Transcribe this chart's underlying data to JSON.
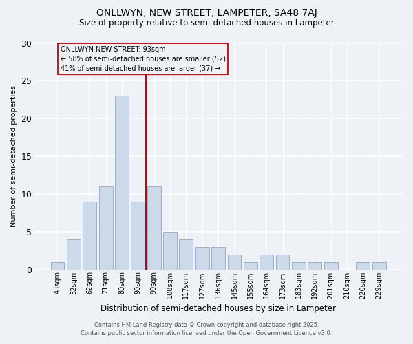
{
  "title": "ONLLWYN, NEW STREET, LAMPETER, SA48 7AJ",
  "subtitle": "Size of property relative to semi-detached houses in Lampeter",
  "xlabel": "Distribution of semi-detached houses by size in Lampeter",
  "ylabel": "Number of semi-detached properties",
  "categories": [
    "43sqm",
    "52sqm",
    "62sqm",
    "71sqm",
    "80sqm",
    "90sqm",
    "99sqm",
    "108sqm",
    "117sqm",
    "127sqm",
    "136sqm",
    "145sqm",
    "155sqm",
    "164sqm",
    "173sqm",
    "183sqm",
    "192sqm",
    "201sqm",
    "210sqm",
    "220sqm",
    "229sqm"
  ],
  "values": [
    1,
    4,
    9,
    11,
    23,
    9,
    11,
    5,
    4,
    3,
    3,
    2,
    1,
    2,
    2,
    1,
    1,
    1,
    0,
    1,
    1
  ],
  "bar_color": "#ccd9e8",
  "bar_edge_color": "#9ab0cc",
  "vline_x": 5.5,
  "vline_color": "#cc0000",
  "annotation_title": "ONLLWYN NEW STREET: 93sqm",
  "annotation_line1": "← 58% of semi-detached houses are smaller (52)",
  "annotation_line2": "41% of semi-detached houses are larger (37) →",
  "annotation_box_color": "#cc0000",
  "ylim": [
    0,
    30
  ],
  "yticks": [
    0,
    5,
    10,
    15,
    20,
    25,
    30
  ],
  "footnote1": "Contains HM Land Registry data © Crown copyright and database right 2025.",
  "footnote2": "Contains public sector information licensed under the Open Government Licence v3.0.",
  "bg_color": "#eef2f7",
  "grid_color": "#ffffff"
}
